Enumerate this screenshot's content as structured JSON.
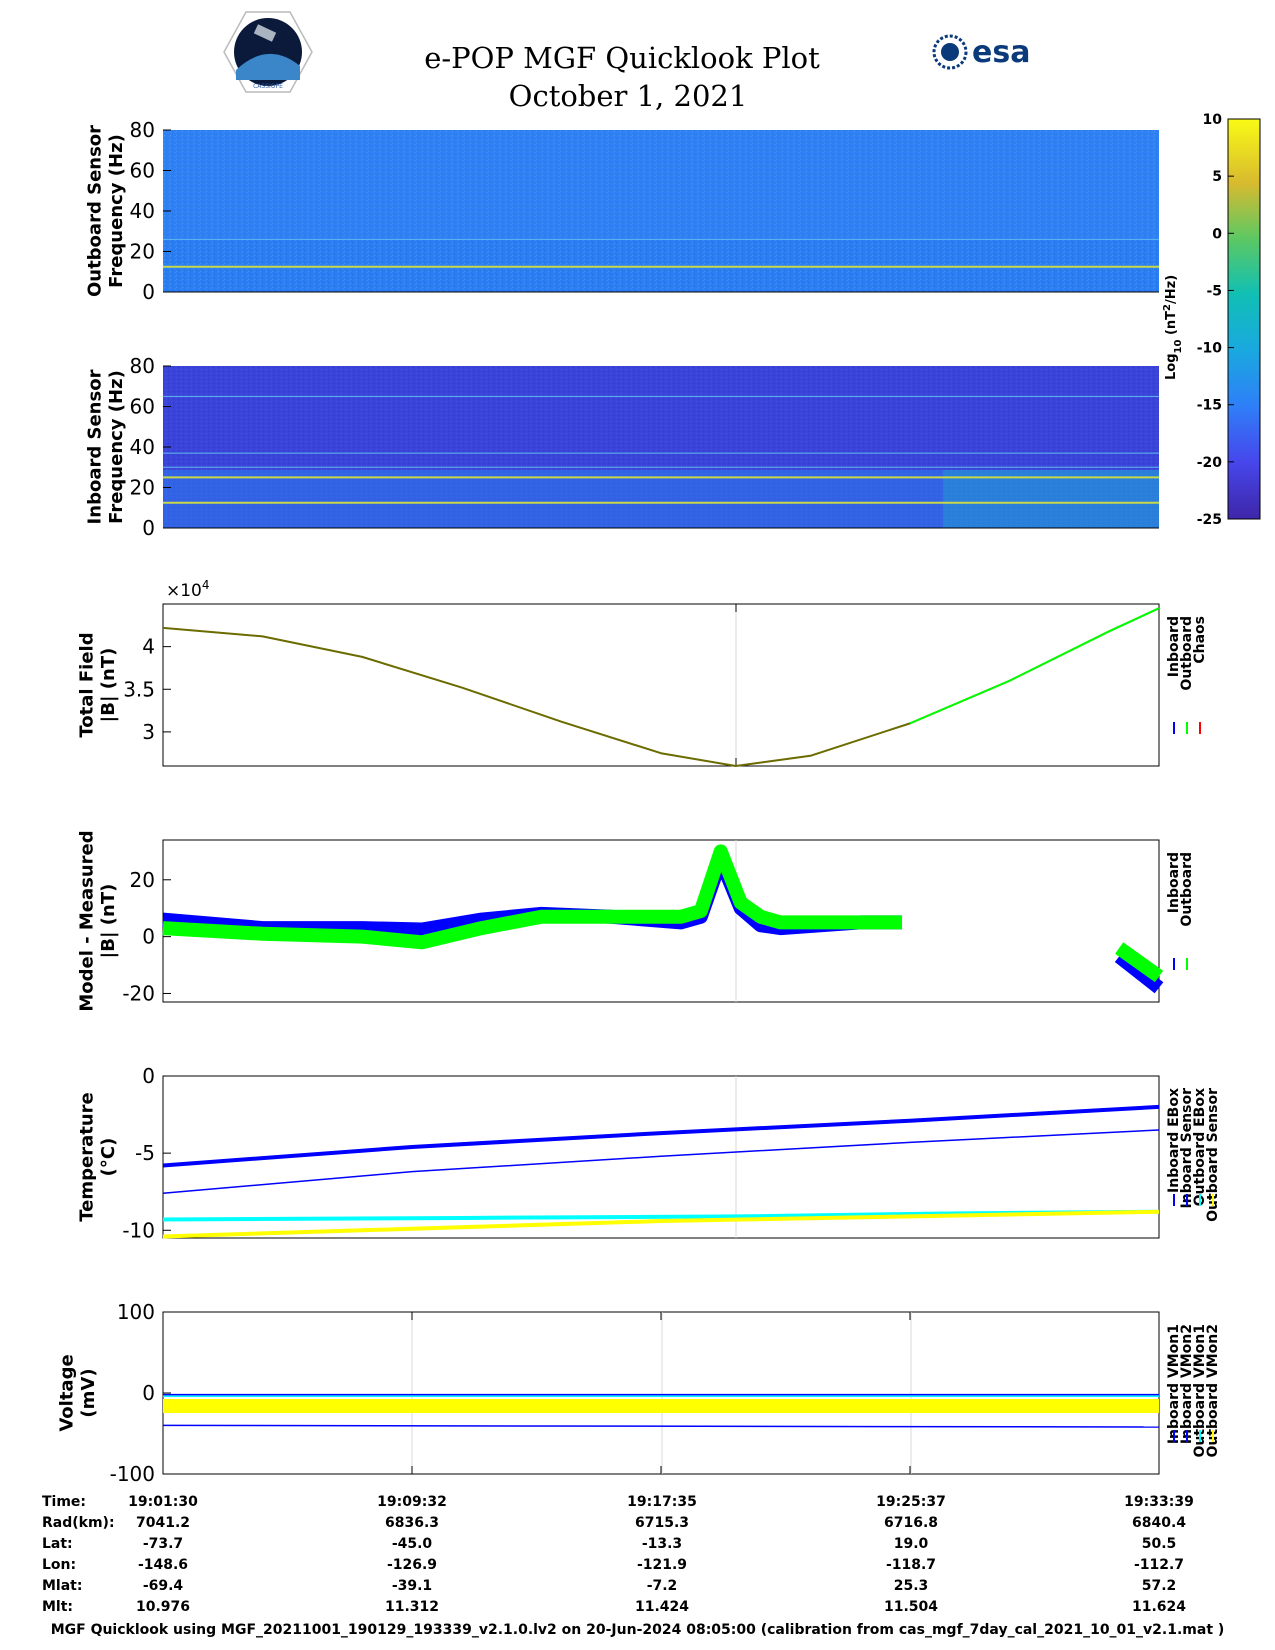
{
  "title": "e-POP MGF Quicklook Plot",
  "date": "October 1, 2021",
  "logo_left": "CASSIOPE",
  "logo_right": "esa",
  "colorbar": {
    "label_prefix": "Log",
    "label_sub": "10",
    "label_mid": " (nT",
    "label_sup": "2",
    "label_suffix": "/Hz)",
    "range": [
      -25,
      10
    ],
    "ticks": [
      "10",
      "5",
      "0",
      "-5",
      "-10",
      "-15",
      "-20",
      "-25"
    ]
  },
  "chart_data": [
    {
      "type": "heatmap",
      "ylabel_lines": [
        "Outboard Sensor",
        "Frequency (Hz)"
      ],
      "ylim": [
        0,
        80
      ],
      "yticks": [
        "80",
        "60",
        "40",
        "20",
        "0"
      ],
      "spectral_lines_hz": [
        12.5,
        26
      ]
    },
    {
      "type": "heatmap",
      "ylabel_lines": [
        "Inboard Sensor",
        "Frequency (Hz)"
      ],
      "ylim": [
        0,
        80
      ],
      "yticks": [
        "80",
        "60",
        "40",
        "20",
        "0"
      ],
      "spectral_lines_hz": [
        12.5,
        25,
        30,
        37,
        65
      ]
    },
    {
      "type": "line",
      "ylabel_lines": [
        "Total Field",
        "|B| (nT)"
      ],
      "exponent_label": "×10",
      "exponent_sup": "4",
      "ylim": [
        2.6,
        4.5
      ],
      "yticks": [
        "4",
        "3.5",
        "3"
      ],
      "legend": [
        "Inboard",
        "Outboard",
        "Chaos"
      ],
      "series": [
        {
          "name": "Outboard",
          "x": [
            0,
            0.1,
            0.2,
            0.3,
            0.4,
            0.5,
            0.575,
            0.65,
            0.75,
            0.85,
            0.95,
            1.0
          ],
          "y": [
            4.22,
            4.12,
            3.88,
            3.52,
            3.12,
            2.75,
            2.6,
            2.72,
            3.1,
            3.6,
            4.18,
            4.45
          ]
        }
      ]
    },
    {
      "type": "line",
      "ylabel_lines": [
        "Model - Measured",
        "|B| (nT)"
      ],
      "ylim": [
        -23,
        34
      ],
      "yticks": [
        "20",
        "0",
        "-20"
      ],
      "legend": [
        "Inboard",
        "Outboard"
      ],
      "series": [
        {
          "name": "Inboard",
          "x": [
            0,
            0.1,
            0.2,
            0.26,
            0.32,
            0.38,
            0.45,
            0.52,
            0.54,
            0.56,
            0.58,
            0.6,
            0.62,
            0.66,
            0.7,
            0.742
          ],
          "y": [
            6,
            3,
            3,
            2.5,
            6,
            8,
            7,
            5,
            7,
            27,
            10,
            4,
            3,
            4,
            5,
            5
          ]
        },
        {
          "name": "Outboard",
          "x": [
            0,
            0.1,
            0.2,
            0.26,
            0.32,
            0.38,
            0.45,
            0.52,
            0.54,
            0.56,
            0.58,
            0.6,
            0.62,
            0.66,
            0.7,
            0.742
          ],
          "y": [
            3,
            1,
            0,
            -2,
            3,
            7,
            7,
            7,
            9,
            30,
            12,
            7,
            5,
            5,
            5,
            5
          ]
        },
        {
          "name": "Inboard end",
          "x": [
            0.96,
            1.0
          ],
          "y": [
            -7,
            -18
          ]
        },
        {
          "name": "Outboard end",
          "x": [
            0.96,
            1.0
          ],
          "y": [
            -4,
            -14
          ]
        }
      ]
    },
    {
      "type": "line",
      "ylabel_lines": [
        "Temperature",
        "(°C)"
      ],
      "ylim": [
        -10.5,
        0
      ],
      "yticks": [
        "0",
        "-5",
        "-10"
      ],
      "legend": [
        "Inboard EBox",
        "Inboard Sensor",
        "Outboard EBox",
        "Outboard Sensor"
      ],
      "series": [
        {
          "name": "Inboard EBox",
          "x": [
            0,
            0.25,
            0.5,
            0.75,
            1.0
          ],
          "y": [
            -5.8,
            -4.6,
            -3.7,
            -2.9,
            -2.0
          ]
        },
        {
          "name": "Inboard Sensor",
          "x": [
            0,
            0.25,
            0.5,
            0.75,
            1.0
          ],
          "y": [
            -7.6,
            -6.2,
            -5.2,
            -4.3,
            -3.5
          ]
        },
        {
          "name": "Outboard EBox",
          "x": [
            0,
            0.3,
            0.58,
            0.8,
            1.0
          ],
          "y": [
            -9.3,
            -9.2,
            -9.1,
            -8.9,
            -8.8
          ]
        },
        {
          "name": "Outboard Sensor",
          "x": [
            0,
            0.25,
            0.5,
            0.75,
            1.0
          ],
          "y": [
            -10.4,
            -9.9,
            -9.4,
            -9.1,
            -8.8
          ]
        }
      ]
    },
    {
      "type": "line",
      "ylabel_lines": [
        "Voltage",
        "(mV)"
      ],
      "ylim": [
        -100,
        100
      ],
      "yticks": [
        "100",
        "0",
        "-100"
      ],
      "legend": [
        "Inboard VMon1",
        "Inboard VMon2",
        "Outboard VMon1",
        "Outboard VMon2"
      ],
      "series": [
        {
          "name": "Inboard VMon1",
          "x": [
            0,
            1.0
          ],
          "y": [
            -40,
            -42
          ]
        },
        {
          "name": "Inboard VMon2",
          "x": [
            0,
            1.0
          ],
          "y": [
            -2,
            -2
          ]
        },
        {
          "name": "Outboard VMon1",
          "x": [
            0,
            1.0
          ],
          "y": [
            -4,
            -4
          ]
        },
        {
          "name": "Outboard VMon2",
          "x": [
            0,
            1.0
          ],
          "y": [
            -16,
            -16
          ]
        }
      ]
    }
  ],
  "ephemeris": {
    "labels": [
      "Time:",
      "Rad(km):",
      "Lat:",
      "Lon:",
      "Mlat:",
      "Mlt:"
    ],
    "columns": [
      [
        "19:01:30",
        "7041.2",
        "-73.7",
        "-148.6",
        "-69.4",
        "10.976"
      ],
      [
        "19:09:32",
        "6836.3",
        "-45.0",
        "-126.9",
        "-39.1",
        "11.312"
      ],
      [
        "19:17:35",
        "6715.3",
        "-13.3",
        "-121.9",
        "-7.2",
        "11.424"
      ],
      [
        "19:25:37",
        "6716.8",
        "19.0",
        "-118.7",
        "25.3",
        "11.504"
      ],
      [
        "19:33:39",
        "6840.4",
        "50.5",
        "-112.7",
        "57.2",
        "11.624"
      ]
    ]
  },
  "footer": "MGF Quicklook using MGF_20211001_190129_193339_v2.1.0.lv2 on 20-Jun-2024 08:05:00 (calibration from cas_mgf_7day_cal_2021_10_01_v2.1.mat )",
  "colors": {
    "inboard": "#0000ff",
    "outboard": "#00ff00",
    "chaos": "#ff0000",
    "cyan": "#00ffff",
    "yellow": "#ffff00"
  }
}
